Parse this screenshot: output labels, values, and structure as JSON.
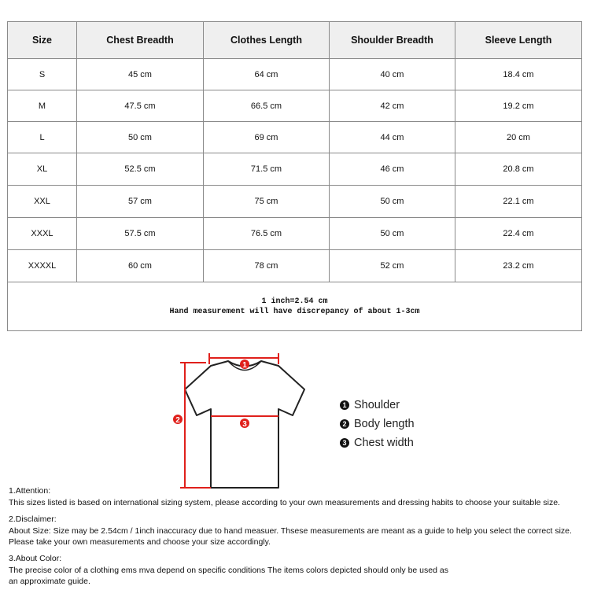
{
  "table": {
    "headers": [
      "Size",
      "Chest Breadth",
      "Clothes Length",
      "Shoulder Breadth",
      "Sleeve Length"
    ],
    "rows": [
      [
        "S",
        "45 cm",
        "64 cm",
        "40 cm",
        "18.4 cm"
      ],
      [
        "M",
        "47.5 cm",
        "66.5 cm",
        "42 cm",
        "19.2 cm"
      ],
      [
        "L",
        "50 cm",
        "69 cm",
        "44 cm",
        "20 cm"
      ],
      [
        "XL",
        "52.5 cm",
        "71.5 cm",
        "46 cm",
        "20.8 cm"
      ],
      [
        "XXL",
        "57 cm",
        "75 cm",
        "50 cm",
        "22.1 cm"
      ],
      [
        "XXXL",
        "57.5 cm",
        "76.5 cm",
        "50 cm",
        "22.4 cm"
      ],
      [
        "XXXXL",
        "60 cm",
        "78 cm",
        "52 cm",
        "23.2 cm"
      ]
    ],
    "note_line1": "1 inch=2.54 cm",
    "note_line2": "Hand measurement will have discrepancy of about 1-3cm"
  },
  "diagram": {
    "markers": [
      "1",
      "2",
      "3"
    ],
    "marker_color": "#e0201b",
    "legend": [
      {
        "num": "1",
        "label": "Shoulder"
      },
      {
        "num": "2",
        "label": "Body length"
      },
      {
        "num": "3",
        "label": "Chest width"
      }
    ]
  },
  "notes": [
    {
      "title": "1.Attention:",
      "lines": [
        "This sizes listed is based on international sizing system, please according to your own measurements and dressing habits to choose your suitable size."
      ]
    },
    {
      "title": "2.Disclaimer:",
      "lines": [
        "About Size: Size may be 2.54cm / 1inch inaccuracy due to hand measuer. Thsese measurements are meant as a guide to help you select the correct size.",
        "Please take your own measurements and choose your size accordingly."
      ]
    },
    {
      "title": "3.About Color:",
      "lines": [
        "The precise color of a clothing ems mva depend on specific conditions The items colors depicted should only be used as",
        "an approximate guide."
      ]
    }
  ]
}
